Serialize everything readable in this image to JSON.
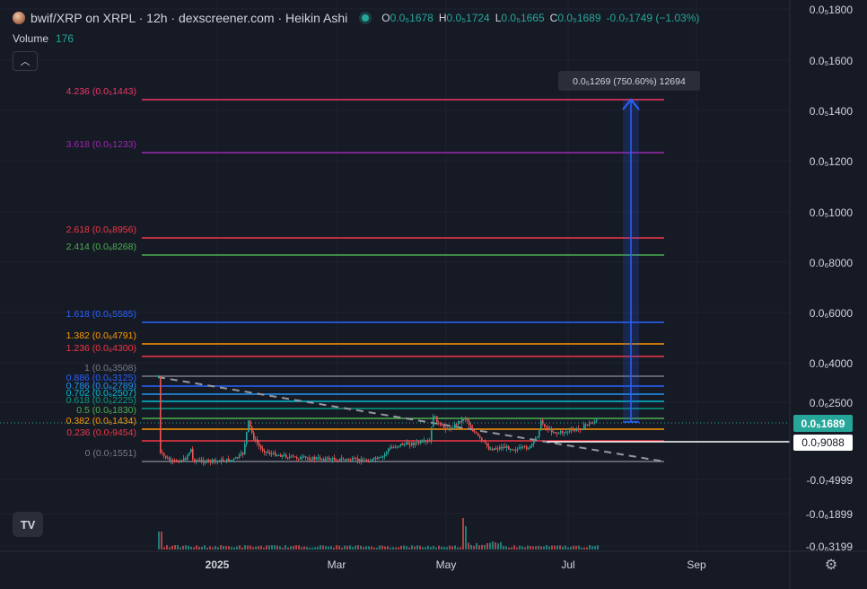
{
  "header": {
    "title": "bwif/XRP on XRPL · 12h · dexscreener.com · Heikin Ashi",
    "ohlc": [
      {
        "key": "O",
        "value": "0.0₅1678"
      },
      {
        "key": "H",
        "value": "0.0₅1724"
      },
      {
        "key": "L",
        "value": "0.0₅1665"
      },
      {
        "key": "C",
        "value": "0.0₅1689"
      },
      {
        "key": "",
        "value": "-0.0₇1749 (−1.03%)"
      }
    ],
    "volume_label": "Volume",
    "volume_value": "176",
    "collapse_icon": "chevron-up-icon",
    "logo_text": "TV"
  },
  "colors": {
    "background": "#161a25",
    "up": "#26a69a",
    "down": "#ef5350",
    "price_badge": "#26a69a",
    "measure": "#2962ff"
  },
  "chart_data": {
    "type": "candlestick",
    "y_axis_labels": [
      "0.0₅1800",
      "0.0₅1600",
      "0.0₅1400",
      "0.0₅1200",
      "0.0₅1000",
      "0.0₆8000",
      "0.0₆6000",
      "0.0₆4000",
      "0.0₆2500",
      "-0.0₇4999",
      "-0.0₆1899",
      "-0.0₆3199"
    ],
    "x_axis_labels": [
      "2025",
      "Mar",
      "May",
      "Jul",
      "Sep"
    ],
    "current_price": "0.0₅1689",
    "crosshair_price": "0.0₇9088",
    "fib_levels": [
      {
        "label": "4.236 (0.0₅1443)",
        "color": "#f23668"
      },
      {
        "label": "3.618 (0.0₅1233)",
        "color": "#9c27b0"
      },
      {
        "label": "2.618 (0.0₆8956)",
        "color": "#f23645"
      },
      {
        "label": "2.414 (0.0₆8268)",
        "color": "#4caf50"
      },
      {
        "label": "1.618 (0.0₆5585)",
        "color": "#2962ff"
      },
      {
        "label": "1.382 (0.0₆4791)",
        "color": "#ff9800"
      },
      {
        "label": "1.236 (0.0₆4300)",
        "color": "#f23645"
      },
      {
        "label": "1 (0.0₆3508)",
        "color": "#787b86"
      },
      {
        "label": "0.886 (0.0₆3125)",
        "color": "#2962ff"
      },
      {
        "label": "0.786 (0.0₆2789)",
        "color": "#2196f3"
      },
      {
        "label": "0.702 (0.0₆2507)",
        "color": "#00bcd4"
      },
      {
        "label": "0.618 (0.0₆2225)",
        "color": "#089981"
      },
      {
        "label": "0.5 (0.0₆1830)",
        "color": "#4caf50"
      },
      {
        "label": "0.382 (0.0₆1434)",
        "color": "#ff9800"
      },
      {
        "label": "0.236 (0.0₇9454)",
        "color": "#f23645"
      },
      {
        "label": "0 (0.0₇1551)",
        "color": "#787b86"
      }
    ],
    "measure_label": "0.0₅1269 (750.60%) 12694",
    "grid": true
  }
}
